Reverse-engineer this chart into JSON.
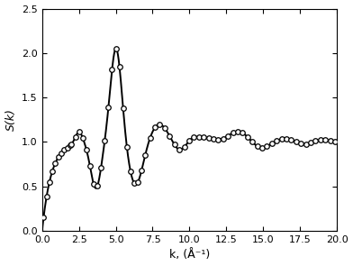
{
  "title": "",
  "xlabel": "k, (Å⁻¹)",
  "ylabel": "S(k)",
  "xlim": [
    0.0,
    20.0
  ],
  "ylim": [
    0.0,
    2.5
  ],
  "xticks": [
    0.0,
    2.5,
    5.0,
    7.5,
    10.0,
    12.5,
    15.0,
    17.5,
    20.0
  ],
  "yticks": [
    0.0,
    0.5,
    1.0,
    1.5,
    2.0,
    2.5
  ],
  "line_color": "#000000",
  "circle_color": "#000000",
  "background": "#ffffff",
  "line_width": 1.4,
  "circle_size": 4.0
}
